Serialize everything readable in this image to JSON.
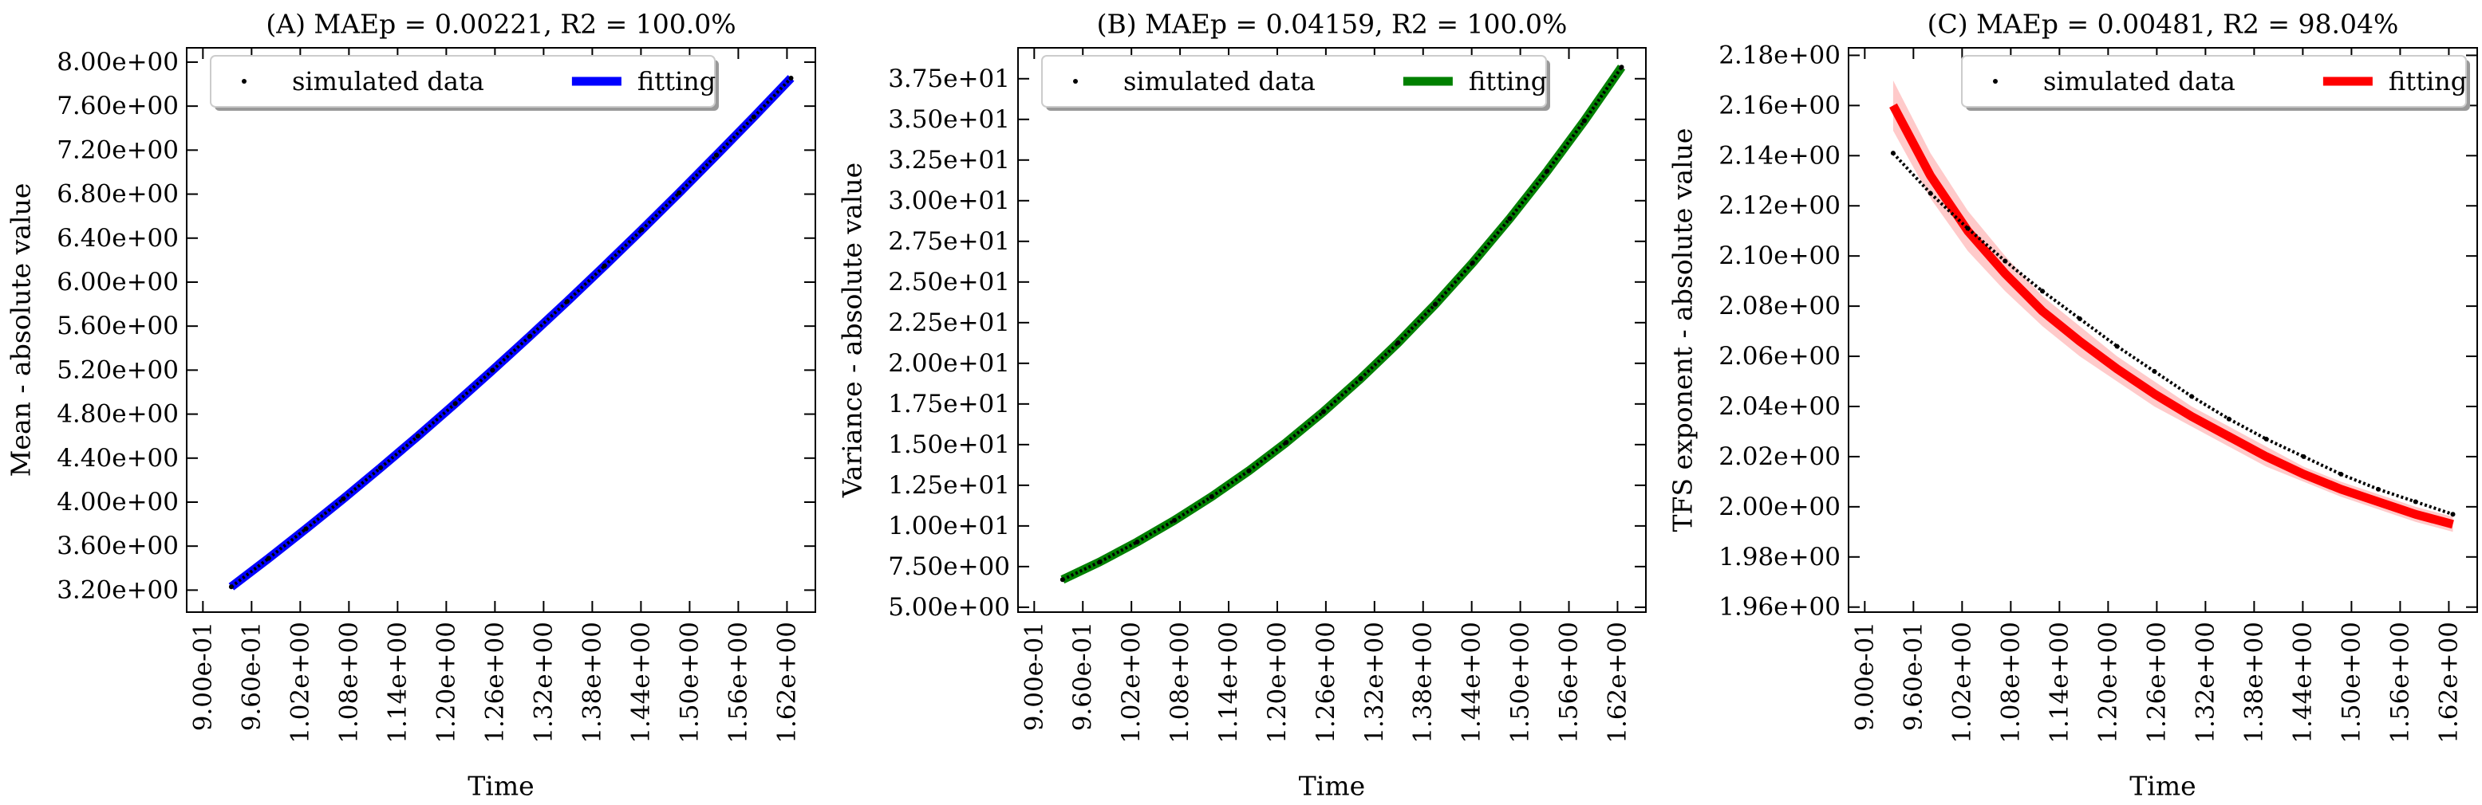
{
  "chart_data": [
    {
      "type": "line",
      "title": "(A) MAEp = 0.00221, R2 = 100.0%",
      "xlabel": "Time",
      "ylabel": "Mean - absolute value",
      "legend": "upper left",
      "grid": false,
      "x": [
        0.935,
        0.981,
        1.027,
        1.073,
        1.119,
        1.165,
        1.211,
        1.257,
        1.303,
        1.349,
        1.395,
        1.441,
        1.487,
        1.533,
        1.579,
        1.625
      ],
      "series": [
        {
          "name": "simulated data",
          "style": "dots",
          "color": "#000000",
          "values": [
            3.23,
            3.489,
            3.757,
            4.03,
            4.312,
            4.6,
            4.896,
            5.199,
            5.508,
            5.824,
            6.147,
            6.476,
            6.811,
            7.154,
            7.501,
            7.855
          ]
        },
        {
          "name": "fitting",
          "style": "line",
          "color": "#0000ff",
          "values": [
            3.23,
            3.489,
            3.757,
            4.03,
            4.312,
            4.6,
            4.896,
            5.199,
            5.508,
            5.824,
            6.147,
            6.476,
            6.811,
            7.154,
            7.501,
            7.855
          ]
        }
      ],
      "xlim": [
        0.88,
        1.655
      ],
      "ylim": [
        3.0,
        8.13
      ],
      "xticks": [
        {
          "value": 0.9,
          "label": "9.00e-01"
        },
        {
          "value": 0.96,
          "label": "9.60e-01"
        },
        {
          "value": 1.02,
          "label": "1.02e+00"
        },
        {
          "value": 1.08,
          "label": "1.08e+00"
        },
        {
          "value": 1.14,
          "label": "1.14e+00"
        },
        {
          "value": 1.2,
          "label": "1.20e+00"
        },
        {
          "value": 1.26,
          "label": "1.26e+00"
        },
        {
          "value": 1.32,
          "label": "1.32e+00"
        },
        {
          "value": 1.38,
          "label": "1.38e+00"
        },
        {
          "value": 1.44,
          "label": "1.44e+00"
        },
        {
          "value": 1.5,
          "label": "1.50e+00"
        },
        {
          "value": 1.56,
          "label": "1.56e+00"
        },
        {
          "value": 1.62,
          "label": "1.62e+00"
        }
      ],
      "yticks": [
        {
          "value": 3.2,
          "label": "3.20e+00"
        },
        {
          "value": 3.6,
          "label": "3.60e+00"
        },
        {
          "value": 4.0,
          "label": "4.00e+00"
        },
        {
          "value": 4.4,
          "label": "4.40e+00"
        },
        {
          "value": 4.8,
          "label": "4.80e+00"
        },
        {
          "value": 5.2,
          "label": "5.20e+00"
        },
        {
          "value": 5.6,
          "label": "5.60e+00"
        },
        {
          "value": 6.0,
          "label": "6.00e+00"
        },
        {
          "value": 6.4,
          "label": "6.40e+00"
        },
        {
          "value": 6.8,
          "label": "6.80e+00"
        },
        {
          "value": 7.2,
          "label": "7.20e+00"
        },
        {
          "value": 7.6,
          "label": "7.60e+00"
        },
        {
          "value": 8.0,
          "label": "8.00e+00"
        }
      ]
    },
    {
      "type": "line",
      "title": "(B) MAEp = 0.04159, R2 = 100.0%",
      "xlabel": "Time",
      "ylabel": "Variance - absolute value",
      "legend": "upper left",
      "grid": false,
      "x": [
        0.935,
        0.981,
        1.027,
        1.073,
        1.119,
        1.165,
        1.211,
        1.257,
        1.303,
        1.349,
        1.395,
        1.441,
        1.487,
        1.533,
        1.579,
        1.625
      ],
      "series": [
        {
          "name": "simulated data",
          "style": "dots",
          "color": "#000000",
          "values": [
            6.7,
            7.79,
            9.01,
            10.34,
            11.8,
            13.39,
            15.13,
            17.02,
            19.06,
            21.26,
            23.63,
            26.17,
            28.9,
            31.81,
            34.91,
            38.21
          ]
        },
        {
          "name": "fitting",
          "style": "line",
          "color": "#008000",
          "values": [
            6.7,
            7.79,
            9.01,
            10.34,
            11.8,
            13.39,
            15.13,
            17.02,
            19.06,
            21.26,
            23.63,
            26.17,
            28.9,
            31.81,
            34.91,
            38.21
          ]
        }
      ],
      "xlim": [
        0.88,
        1.655
      ],
      "ylim": [
        4.7,
        39.4
      ],
      "xticks": [
        {
          "value": 0.9,
          "label": "9.00e-01"
        },
        {
          "value": 0.96,
          "label": "9.60e-01"
        },
        {
          "value": 1.02,
          "label": "1.02e+00"
        },
        {
          "value": 1.08,
          "label": "1.08e+00"
        },
        {
          "value": 1.14,
          "label": "1.14e+00"
        },
        {
          "value": 1.2,
          "label": "1.20e+00"
        },
        {
          "value": 1.26,
          "label": "1.26e+00"
        },
        {
          "value": 1.32,
          "label": "1.32e+00"
        },
        {
          "value": 1.38,
          "label": "1.38e+00"
        },
        {
          "value": 1.44,
          "label": "1.44e+00"
        },
        {
          "value": 1.5,
          "label": "1.50e+00"
        },
        {
          "value": 1.56,
          "label": "1.56e+00"
        },
        {
          "value": 1.62,
          "label": "1.62e+00"
        }
      ],
      "yticks": [
        {
          "value": 5.0,
          "label": "5.00e+00"
        },
        {
          "value": 7.5,
          "label": "7.50e+00"
        },
        {
          "value": 10.0,
          "label": "1.00e+01"
        },
        {
          "value": 12.5,
          "label": "1.25e+01"
        },
        {
          "value": 15.0,
          "label": "1.50e+01"
        },
        {
          "value": 17.5,
          "label": "1.75e+01"
        },
        {
          "value": 20.0,
          "label": "2.00e+01"
        },
        {
          "value": 22.5,
          "label": "2.25e+01"
        },
        {
          "value": 25.0,
          "label": "2.50e+01"
        },
        {
          "value": 27.5,
          "label": "2.75e+01"
        },
        {
          "value": 30.0,
          "label": "3.00e+01"
        },
        {
          "value": 32.5,
          "label": "3.25e+01"
        },
        {
          "value": 35.0,
          "label": "3.50e+01"
        },
        {
          "value": 37.5,
          "label": "3.75e+01"
        }
      ]
    },
    {
      "type": "line",
      "title": "(C) MAEp = 0.00481, R2 = 98.04%",
      "xlabel": "Time",
      "ylabel": "TFS exponent - absolute value",
      "legend": "upper right",
      "grid": false,
      "x": [
        0.935,
        0.981,
        1.027,
        1.073,
        1.119,
        1.165,
        1.211,
        1.257,
        1.303,
        1.349,
        1.395,
        1.441,
        1.487,
        1.533,
        1.579,
        1.625
      ],
      "series": [
        {
          "name": "simulated data",
          "style": "dots",
          "color": "#000000",
          "values": [
            2.141,
            2.125,
            2.111,
            2.098,
            2.086,
            2.075,
            2.064,
            2.054,
            2.044,
            2.035,
            2.027,
            2.02,
            2.013,
            2.007,
            2.002,
            1.997
          ]
        },
        {
          "name": "fitting",
          "style": "line",
          "color": "#ff0000",
          "values": [
            2.16,
            2.132,
            2.11,
            2.093,
            2.078,
            2.066,
            2.055,
            2.045,
            2.036,
            2.028,
            2.02,
            2.013,
            2.007,
            2.002,
            1.997,
            1.993
          ]
        }
      ],
      "band": {
        "color": "#ffb3b3",
        "upper": [
          2.17,
          2.141,
          2.118,
          2.1,
          2.084,
          2.072,
          2.06,
          2.05,
          2.04,
          2.032,
          2.024,
          2.016,
          2.01,
          2.005,
          2.0,
          1.996
        ],
        "lower": [
          2.15,
          2.123,
          2.102,
          2.086,
          2.072,
          2.06,
          2.05,
          2.04,
          2.032,
          2.024,
          2.016,
          2.01,
          2.004,
          1.999,
          1.994,
          1.99
        ]
      },
      "xlim": [
        0.88,
        1.655
      ],
      "ylim": [
        1.958,
        2.183
      ],
      "xticks": [
        {
          "value": 0.9,
          "label": "9.00e-01"
        },
        {
          "value": 0.96,
          "label": "9.60e-01"
        },
        {
          "value": 1.02,
          "label": "1.02e+00"
        },
        {
          "value": 1.08,
          "label": "1.08e+00"
        },
        {
          "value": 1.14,
          "label": "1.14e+00"
        },
        {
          "value": 1.2,
          "label": "1.20e+00"
        },
        {
          "value": 1.26,
          "label": "1.26e+00"
        },
        {
          "value": 1.32,
          "label": "1.32e+00"
        },
        {
          "value": 1.38,
          "label": "1.38e+00"
        },
        {
          "value": 1.44,
          "label": "1.44e+00"
        },
        {
          "value": 1.5,
          "label": "1.50e+00"
        },
        {
          "value": 1.56,
          "label": "1.56e+00"
        },
        {
          "value": 1.62,
          "label": "1.62e+00"
        }
      ],
      "yticks": [
        {
          "value": 1.96,
          "label": "1.96e+00"
        },
        {
          "value": 1.98,
          "label": "1.98e+00"
        },
        {
          "value": 2.0,
          "label": "2.00e+00"
        },
        {
          "value": 2.02,
          "label": "2.02e+00"
        },
        {
          "value": 2.04,
          "label": "2.04e+00"
        },
        {
          "value": 2.06,
          "label": "2.06e+00"
        },
        {
          "value": 2.08,
          "label": "2.08e+00"
        },
        {
          "value": 2.1,
          "label": "2.10e+00"
        },
        {
          "value": 2.12,
          "label": "2.12e+00"
        },
        {
          "value": 2.14,
          "label": "2.14e+00"
        },
        {
          "value": 2.16,
          "label": "2.16e+00"
        },
        {
          "value": 2.18,
          "label": "2.18e+00"
        }
      ]
    }
  ]
}
